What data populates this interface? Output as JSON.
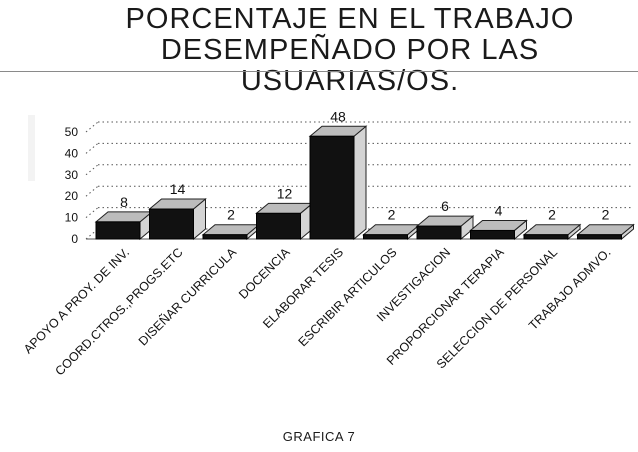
{
  "title_lines": [
    "PORCENTAJE EN EL TRABAJO",
    "DESEMPEÑADO POR LAS USUARIAS/OS."
  ],
  "caption": "GRAFICA 7",
  "colors": {
    "bar_front": "#111111",
    "bar_top": "#bcbcbc",
    "bar_side": "#d4d4d4",
    "grid": "#555555",
    "text": "#111111"
  },
  "chart_data": {
    "type": "bar",
    "title": "PORCENTAJE EN EL TRABAJO DESEMPEÑADO POR LAS USUARIAS/OS.",
    "xlabel": "",
    "ylabel": "",
    "categories": [
      "APOYO A PROY. DE INV.",
      "COORD.CTROS.,PROGS.ETC",
      "DISEÑAR CURRICULA",
      "DOCENCIA",
      "ELABORAR TESIS",
      "ESCRIBIR ARTICULOS",
      "INVESTIGACION",
      "PROPORCIONAR TERAPIA",
      "SELECCION DE PERSONAL",
      "TRABAJO ADMVO."
    ],
    "values": [
      8,
      14,
      2,
      12,
      48,
      2,
      6,
      4,
      2,
      2
    ],
    "data_labels": [
      "8",
      "14",
      "2",
      "12",
      "48",
      "2",
      "6",
      "4",
      "2",
      "2"
    ],
    "yticks": [
      "0",
      "10",
      "20",
      "30",
      "40",
      "50"
    ],
    "ylim": [
      0,
      55
    ],
    "grid": true,
    "three_d": true
  }
}
